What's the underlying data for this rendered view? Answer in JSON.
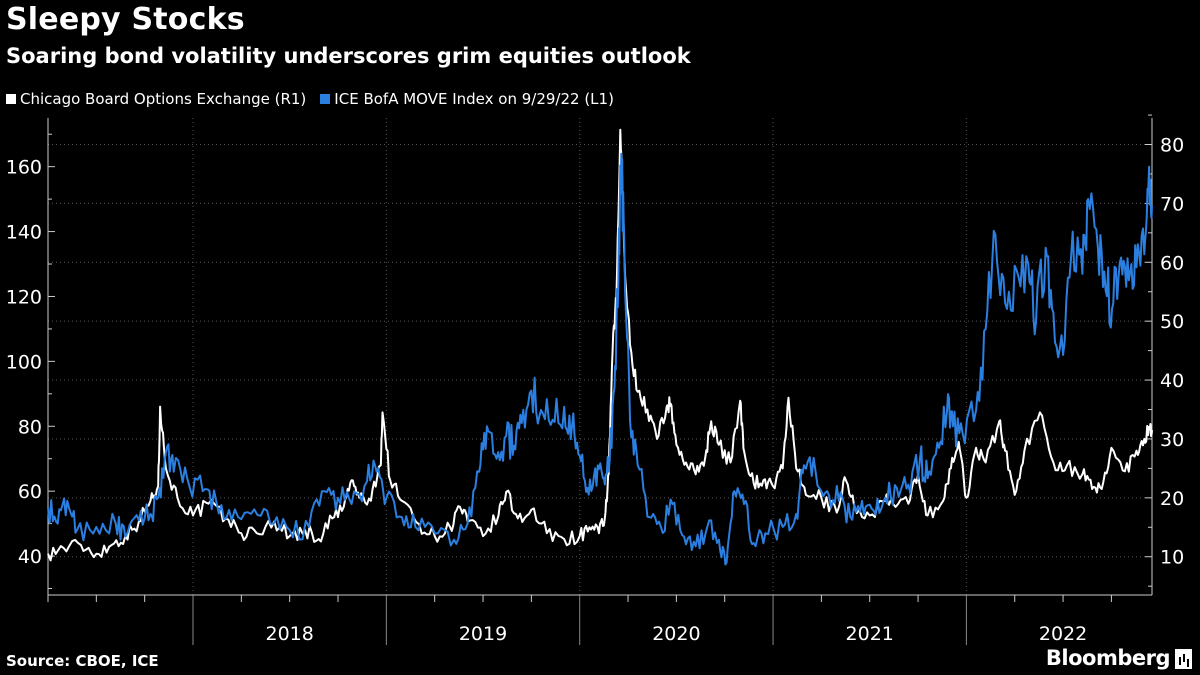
{
  "title": "Sleepy Stocks",
  "subtitle": "Soaring bond volatility underscores grim equities outlook",
  "source": "Source: CBOE, ICE",
  "brand": "Bloomberg",
  "colors": {
    "background": "#000000",
    "series_white": "#ffffff",
    "series_blue": "#2b7fe0",
    "grid": "#555555"
  },
  "chart_data": {
    "type": "line",
    "title": "Sleepy Stocks",
    "subtitle": "Soaring bond volatility underscores grim equities outlook",
    "x_unit": "year (decimal)",
    "x_range": [
      2017.25,
      2022.96
    ],
    "year_labels": [
      "2018",
      "2019",
      "2020",
      "2021",
      "2022"
    ],
    "left_axis": {
      "label": "L1",
      "range": [
        28,
        175
      ],
      "ticks": [
        40,
        60,
        80,
        100,
        120,
        140,
        160
      ]
    },
    "right_axis": {
      "label": "R1",
      "range": [
        3.5,
        84.5
      ],
      "ticks": [
        10,
        20,
        30,
        40,
        50,
        60,
        70,
        80
      ]
    },
    "grid": true,
    "legend": "top-left",
    "series": [
      {
        "name": "Chicago Board Options Exchange (R1)",
        "axis": "right",
        "color": "#ffffff",
        "points": [
          [
            2017.25,
            10.5
          ],
          [
            2017.33,
            11.5
          ],
          [
            2017.42,
            12.0
          ],
          [
            2017.5,
            10.5
          ],
          [
            2017.58,
            12.0
          ],
          [
            2017.65,
            13.5
          ],
          [
            2017.72,
            16.0
          ],
          [
            2017.78,
            19.5
          ],
          [
            2017.82,
            22.0
          ],
          [
            2017.83,
            35.5
          ],
          [
            2017.86,
            25.0
          ],
          [
            2017.92,
            20.0
          ],
          [
            2018.0,
            17.0
          ],
          [
            2018.08,
            19.0
          ],
          [
            2018.17,
            16.5
          ],
          [
            2018.25,
            14.0
          ],
          [
            2018.33,
            14.0
          ],
          [
            2018.42,
            16.0
          ],
          [
            2018.5,
            13.5
          ],
          [
            2018.58,
            14.5
          ],
          [
            2018.65,
            13.0
          ],
          [
            2018.72,
            16.5
          ],
          [
            2018.78,
            18.5
          ],
          [
            2018.82,
            23.0
          ],
          [
            2018.86,
            20.0
          ],
          [
            2018.92,
            19.5
          ],
          [
            2018.97,
            25.5
          ],
          [
            2018.98,
            34.5
          ],
          [
            2019.02,
            23.0
          ],
          [
            2019.08,
            19.5
          ],
          [
            2019.17,
            15.5
          ],
          [
            2019.25,
            13.5
          ],
          [
            2019.33,
            15.0
          ],
          [
            2019.38,
            18.5
          ],
          [
            2019.42,
            16.0
          ],
          [
            2019.5,
            13.5
          ],
          [
            2019.58,
            17.0
          ],
          [
            2019.62,
            21.0
          ],
          [
            2019.68,
            16.5
          ],
          [
            2019.75,
            18.0
          ],
          [
            2019.83,
            14.0
          ],
          [
            2019.92,
            13.0
          ],
          [
            2020.0,
            13.5
          ],
          [
            2020.05,
            15.0
          ],
          [
            2020.1,
            14.0
          ],
          [
            2020.13,
            16.5
          ],
          [
            2020.15,
            24.0
          ],
          [
            2020.17,
            45.0
          ],
          [
            2020.19,
            54.0
          ],
          [
            2020.21,
            82.5
          ],
          [
            2020.23,
            62.0
          ],
          [
            2020.26,
            46.0
          ],
          [
            2020.3,
            38.0
          ],
          [
            2020.35,
            35.0
          ],
          [
            2020.4,
            30.0
          ],
          [
            2020.45,
            35.5
          ],
          [
            2020.47,
            36.0
          ],
          [
            2020.5,
            29.0
          ],
          [
            2020.55,
            26.0
          ],
          [
            2020.6,
            24.0
          ],
          [
            2020.65,
            27.0
          ],
          [
            2020.68,
            33.0
          ],
          [
            2020.72,
            29.0
          ],
          [
            2020.78,
            26.0
          ],
          [
            2020.83,
            36.5
          ],
          [
            2020.85,
            28.0
          ],
          [
            2020.9,
            22.5
          ],
          [
            2020.95,
            23.0
          ],
          [
            2021.0,
            22.0
          ],
          [
            2021.05,
            25.0
          ],
          [
            2021.08,
            37.0
          ],
          [
            2021.12,
            25.0
          ],
          [
            2021.17,
            20.5
          ],
          [
            2021.25,
            20.0
          ],
          [
            2021.33,
            17.5
          ],
          [
            2021.37,
            23.5
          ],
          [
            2021.42,
            18.5
          ],
          [
            2021.5,
            17.0
          ],
          [
            2021.58,
            19.5
          ],
          [
            2021.62,
            19.0
          ],
          [
            2021.7,
            19.0
          ],
          [
            2021.75,
            24.0
          ],
          [
            2021.8,
            17.0
          ],
          [
            2021.88,
            19.5
          ],
          [
            2021.92,
            25.0
          ],
          [
            2021.96,
            29.5
          ],
          [
            2022.0,
            20.0
          ],
          [
            2022.05,
            28.5
          ],
          [
            2022.1,
            26.0
          ],
          [
            2022.17,
            33.0
          ],
          [
            2022.2,
            28.0
          ],
          [
            2022.25,
            20.5
          ],
          [
            2022.3,
            28.0
          ],
          [
            2022.38,
            34.5
          ],
          [
            2022.45,
            26.0
          ],
          [
            2022.52,
            25.5
          ],
          [
            2022.6,
            24.0
          ],
          [
            2022.65,
            21.5
          ],
          [
            2022.7,
            21.5
          ],
          [
            2022.75,
            28.5
          ],
          [
            2022.82,
            24.5
          ],
          [
            2022.88,
            28.0
          ],
          [
            2022.92,
            30.0
          ],
          [
            2022.95,
            32.0
          ],
          [
            2022.96,
            31.5
          ]
        ]
      },
      {
        "name": "ICE BofA MOVE Index on 9/29/22 (L1)",
        "axis": "left",
        "color": "#2b7fe0",
        "points": [
          [
            2017.25,
            55
          ],
          [
            2017.3,
            50
          ],
          [
            2017.35,
            57
          ],
          [
            2017.4,
            48
          ],
          [
            2017.5,
            49
          ],
          [
            2017.6,
            50
          ],
          [
            2017.65,
            46
          ],
          [
            2017.72,
            51
          ],
          [
            2017.78,
            53
          ],
          [
            2017.82,
            58
          ],
          [
            2017.86,
            72
          ],
          [
            2017.9,
            66
          ],
          [
            2017.97,
            64
          ],
          [
            2018.05,
            60
          ],
          [
            2018.12,
            57
          ],
          [
            2018.2,
            51
          ],
          [
            2018.3,
            53
          ],
          [
            2018.4,
            50
          ],
          [
            2018.5,
            48
          ],
          [
            2018.6,
            49
          ],
          [
            2018.68,
            60
          ],
          [
            2018.75,
            58
          ],
          [
            2018.82,
            56
          ],
          [
            2018.9,
            63
          ],
          [
            2018.95,
            66
          ],
          [
            2019.0,
            58
          ],
          [
            2019.08,
            52
          ],
          [
            2019.15,
            49
          ],
          [
            2019.25,
            47
          ],
          [
            2019.35,
            45
          ],
          [
            2019.42,
            50
          ],
          [
            2019.48,
            66
          ],
          [
            2019.52,
            80
          ],
          [
            2019.57,
            70
          ],
          [
            2019.62,
            77
          ],
          [
            2019.66,
            74
          ],
          [
            2019.7,
            81
          ],
          [
            2019.75,
            91
          ],
          [
            2019.8,
            85
          ],
          [
            2019.86,
            82
          ],
          [
            2019.92,
            86
          ],
          [
            2019.96,
            80
          ],
          [
            2020.0,
            71
          ],
          [
            2020.04,
            61
          ],
          [
            2020.08,
            67
          ],
          [
            2020.12,
            64
          ],
          [
            2020.15,
            66
          ],
          [
            2020.18,
            92
          ],
          [
            2020.2,
            125
          ],
          [
            2020.215,
            164
          ],
          [
            2020.23,
            138
          ],
          [
            2020.26,
            82
          ],
          [
            2020.3,
            68
          ],
          [
            2020.36,
            52
          ],
          [
            2020.42,
            49
          ],
          [
            2020.48,
            56
          ],
          [
            2020.54,
            46
          ],
          [
            2020.6,
            43
          ],
          [
            2020.66,
            49
          ],
          [
            2020.72,
            45
          ],
          [
            2020.76,
            38
          ],
          [
            2020.8,
            60
          ],
          [
            2020.85,
            56
          ],
          [
            2020.9,
            44
          ],
          [
            2020.96,
            47
          ],
          [
            2021.05,
            49
          ],
          [
            2021.12,
            53
          ],
          [
            2021.16,
            68
          ],
          [
            2021.22,
            66
          ],
          [
            2021.28,
            60
          ],
          [
            2021.34,
            57
          ],
          [
            2021.4,
            52
          ],
          [
            2021.46,
            57
          ],
          [
            2021.52,
            54
          ],
          [
            2021.58,
            58
          ],
          [
            2021.64,
            61
          ],
          [
            2021.7,
            62
          ],
          [
            2021.76,
            70
          ],
          [
            2021.8,
            64
          ],
          [
            2021.85,
            75
          ],
          [
            2021.9,
            85
          ],
          [
            2021.93,
            80
          ],
          [
            2021.98,
            78
          ],
          [
            2022.05,
            85
          ],
          [
            2022.1,
            110
          ],
          [
            2022.15,
            139
          ],
          [
            2022.2,
            118
          ],
          [
            2022.26,
            128
          ],
          [
            2022.32,
            130
          ],
          [
            2022.36,
            112
          ],
          [
            2022.41,
            135
          ],
          [
            2022.45,
            115
          ],
          [
            2022.5,
            102
          ],
          [
            2022.55,
            140
          ],
          [
            2022.6,
            127
          ],
          [
            2022.63,
            150
          ],
          [
            2022.68,
            135
          ],
          [
            2022.72,
            122
          ],
          [
            2022.76,
            118
          ],
          [
            2022.8,
            132
          ],
          [
            2022.84,
            125
          ],
          [
            2022.88,
            129
          ],
          [
            2022.92,
            133
          ],
          [
            2022.945,
            160
          ],
          [
            2022.96,
            148
          ]
        ]
      }
    ]
  }
}
